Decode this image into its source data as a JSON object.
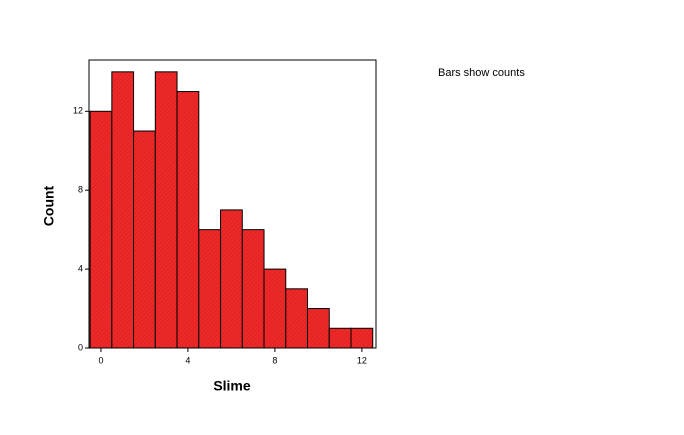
{
  "chart_data": {
    "type": "histogram",
    "bins": [
      -0.5,
      0.5,
      1.5,
      2.5,
      3.5,
      4.5,
      5.5,
      6.5,
      7.5,
      8.5,
      9.5,
      10.5,
      11.5,
      12.5
    ],
    "values": [
      12,
      14,
      11,
      14,
      13,
      6,
      7,
      6,
      4,
      3,
      2,
      1,
      1
    ],
    "color": "#f02828",
    "xlim": [
      -0.55,
      12.65
    ],
    "xticks": [
      0,
      4,
      8,
      12
    ],
    "ylim": [
      0,
      14.6
    ],
    "yticks": [
      0,
      4,
      8,
      12
    ],
    "x_label": "Slime",
    "y_label": "Count",
    "annotation": "Bars show counts"
  }
}
